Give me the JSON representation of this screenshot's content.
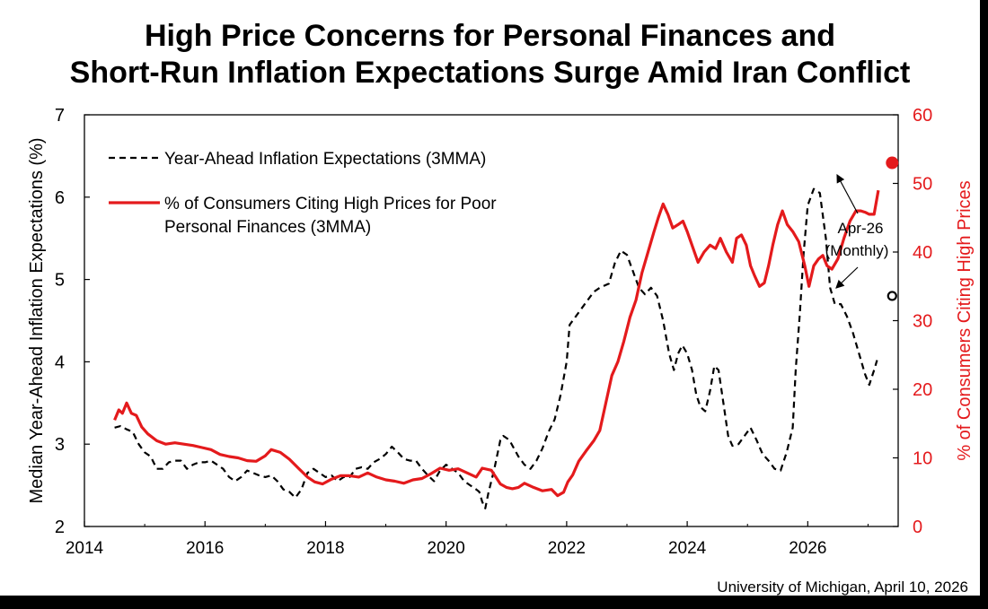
{
  "title_line1": "High Price Concerns for Personal Finances and",
  "title_line2": "Short-Run Inflation Expectations Surge Amid Iran Conflict",
  "source": "University of Michigan, April 10, 2026",
  "annotation": {
    "line1": "Apr-26",
    "line2": "(Monthly)"
  },
  "chart_data": {
    "type": "line",
    "xlim": [
      2014,
      2027.5
    ],
    "x_ticks": [
      "2014",
      "2016",
      "2018",
      "2020",
      "2022",
      "2024",
      "2026"
    ],
    "ylabel_left": "Median Year-Ahead Inflation Expectations (%)",
    "ylim_left": [
      2,
      7
    ],
    "y_ticks_left": [
      "2",
      "3",
      "4",
      "5",
      "6",
      "7"
    ],
    "ylabel_right": "% of Consumers Citing High Prices",
    "ylim_right": [
      0,
      60
    ],
    "y_ticks_right": [
      "0",
      "10",
      "20",
      "30",
      "40",
      "50",
      "60"
    ],
    "grid": false,
    "legend_position": "top-left",
    "series": [
      {
        "name": "Year-Ahead Inflation Expectations (3MMA)",
        "axis": "left",
        "style": "dashed",
        "color": "#000000",
        "points": [
          [
            2014.5,
            3.2
          ],
          [
            2014.6,
            3.22
          ],
          [
            2014.7,
            3.18
          ],
          [
            2014.8,
            3.15
          ],
          [
            2014.9,
            3.0
          ],
          [
            2015.0,
            2.9
          ],
          [
            2015.1,
            2.85
          ],
          [
            2015.2,
            2.7
          ],
          [
            2015.3,
            2.7
          ],
          [
            2015.4,
            2.78
          ],
          [
            2015.5,
            2.8
          ],
          [
            2015.6,
            2.8
          ],
          [
            2015.7,
            2.7
          ],
          [
            2015.8,
            2.75
          ],
          [
            2015.9,
            2.78
          ],
          [
            2016.0,
            2.78
          ],
          [
            2016.1,
            2.8
          ],
          [
            2016.2,
            2.75
          ],
          [
            2016.3,
            2.7
          ],
          [
            2016.4,
            2.6
          ],
          [
            2016.5,
            2.55
          ],
          [
            2016.6,
            2.6
          ],
          [
            2016.7,
            2.68
          ],
          [
            2016.8,
            2.65
          ],
          [
            2016.9,
            2.62
          ],
          [
            2017.0,
            2.6
          ],
          [
            2017.1,
            2.62
          ],
          [
            2017.2,
            2.55
          ],
          [
            2017.3,
            2.45
          ],
          [
            2017.4,
            2.42
          ],
          [
            2017.5,
            2.35
          ],
          [
            2017.6,
            2.45
          ],
          [
            2017.7,
            2.65
          ],
          [
            2017.8,
            2.7
          ],
          [
            2017.9,
            2.65
          ],
          [
            2018.0,
            2.6
          ],
          [
            2018.1,
            2.62
          ],
          [
            2018.2,
            2.55
          ],
          [
            2018.3,
            2.6
          ],
          [
            2018.4,
            2.6
          ],
          [
            2018.5,
            2.7
          ],
          [
            2018.6,
            2.72
          ],
          [
            2018.7,
            2.7
          ],
          [
            2018.8,
            2.78
          ],
          [
            2018.9,
            2.82
          ],
          [
            2019.0,
            2.88
          ],
          [
            2019.1,
            2.97
          ],
          [
            2019.2,
            2.9
          ],
          [
            2019.3,
            2.82
          ],
          [
            2019.4,
            2.8
          ],
          [
            2019.5,
            2.8
          ],
          [
            2019.6,
            2.7
          ],
          [
            2019.7,
            2.62
          ],
          [
            2019.8,
            2.55
          ],
          [
            2019.9,
            2.68
          ],
          [
            2020.0,
            2.75
          ],
          [
            2020.1,
            2.7
          ],
          [
            2020.2,
            2.65
          ],
          [
            2020.3,
            2.55
          ],
          [
            2020.4,
            2.5
          ],
          [
            2020.5,
            2.45
          ],
          [
            2020.55,
            2.42
          ],
          [
            2020.6,
            2.3
          ],
          [
            2020.65,
            2.22
          ],
          [
            2020.7,
            2.4
          ],
          [
            2020.8,
            2.7
          ],
          [
            2020.9,
            3.05
          ],
          [
            2020.95,
            3.1
          ],
          [
            2021.05,
            3.05
          ],
          [
            2021.2,
            2.85
          ],
          [
            2021.3,
            2.75
          ],
          [
            2021.4,
            2.7
          ],
          [
            2021.5,
            2.8
          ],
          [
            2021.6,
            2.95
          ],
          [
            2021.7,
            3.15
          ],
          [
            2021.8,
            3.3
          ],
          [
            2021.9,
            3.6
          ],
          [
            2022.0,
            4.0
          ],
          [
            2022.05,
            4.45
          ],
          [
            2022.15,
            4.55
          ],
          [
            2022.25,
            4.65
          ],
          [
            2022.35,
            4.75
          ],
          [
            2022.45,
            4.85
          ],
          [
            2022.55,
            4.9
          ],
          [
            2022.7,
            4.95
          ],
          [
            2022.8,
            5.2
          ],
          [
            2022.9,
            5.35
          ],
          [
            2023.0,
            5.3
          ],
          [
            2023.1,
            5.1
          ],
          [
            2023.2,
            4.9
          ],
          [
            2023.3,
            4.82
          ],
          [
            2023.4,
            4.9
          ],
          [
            2023.5,
            4.8
          ],
          [
            2023.6,
            4.5
          ],
          [
            2023.7,
            4.1
          ],
          [
            2023.78,
            3.9
          ],
          [
            2023.85,
            4.1
          ],
          [
            2023.92,
            4.2
          ],
          [
            2024.0,
            4.1
          ],
          [
            2024.08,
            3.9
          ],
          [
            2024.15,
            3.6
          ],
          [
            2024.22,
            3.45
          ],
          [
            2024.3,
            3.4
          ],
          [
            2024.38,
            3.65
          ],
          [
            2024.45,
            3.95
          ],
          [
            2024.52,
            3.9
          ],
          [
            2024.6,
            3.5
          ],
          [
            2024.68,
            3.1
          ],
          [
            2024.75,
            2.98
          ],
          [
            2024.85,
            3.0
          ],
          [
            2024.95,
            3.1
          ],
          [
            2025.05,
            3.2
          ],
          [
            2025.15,
            3.05
          ],
          [
            2025.25,
            2.88
          ],
          [
            2025.35,
            2.8
          ],
          [
            2025.45,
            2.7
          ],
          [
            2025.55,
            2.68
          ],
          [
            2025.65,
            2.9
          ],
          [
            2025.75,
            3.2
          ],
          [
            2025.8,
            3.9
          ],
          [
            2025.87,
            4.6
          ],
          [
            2025.93,
            5.3
          ],
          [
            2026.0,
            5.9
          ],
          [
            2026.1,
            6.1
          ],
          [
            2026.2,
            6.05
          ],
          [
            2026.3,
            5.5
          ],
          [
            2026.37,
            4.9
          ],
          [
            2026.45,
            4.7
          ],
          [
            2026.55,
            4.7
          ],
          [
            2026.65,
            4.55
          ],
          [
            2026.75,
            4.35
          ],
          [
            2026.85,
            4.1
          ],
          [
            2026.95,
            3.85
          ],
          [
            2027.02,
            3.72
          ],
          [
            2027.1,
            3.9
          ],
          [
            2027.15,
            4.02
          ]
        ]
      },
      {
        "name": "% of Consumers Citing High Prices for Poor Personal Finances (3MMA)",
        "axis": "right",
        "style": "solid",
        "color": "#e41a1c",
        "points": [
          [
            2014.5,
            15.5
          ],
          [
            2014.57,
            17.0
          ],
          [
            2014.63,
            16.5
          ],
          [
            2014.7,
            18.0
          ],
          [
            2014.78,
            16.5
          ],
          [
            2014.86,
            16.2
          ],
          [
            2014.95,
            14.5
          ],
          [
            2015.05,
            13.5
          ],
          [
            2015.2,
            12.5
          ],
          [
            2015.35,
            12.0
          ],
          [
            2015.5,
            12.2
          ],
          [
            2015.65,
            12.0
          ],
          [
            2015.8,
            11.8
          ],
          [
            2015.95,
            11.5
          ],
          [
            2016.1,
            11.2
          ],
          [
            2016.25,
            10.5
          ],
          [
            2016.4,
            10.2
          ],
          [
            2016.55,
            10.0
          ],
          [
            2016.7,
            9.6
          ],
          [
            2016.85,
            9.5
          ],
          [
            2017.0,
            10.3
          ],
          [
            2017.1,
            11.2
          ],
          [
            2017.25,
            10.8
          ],
          [
            2017.4,
            9.8
          ],
          [
            2017.55,
            8.5
          ],
          [
            2017.7,
            7.2
          ],
          [
            2017.82,
            6.5
          ],
          [
            2017.95,
            6.2
          ],
          [
            2018.1,
            6.9
          ],
          [
            2018.25,
            7.4
          ],
          [
            2018.4,
            7.4
          ],
          [
            2018.55,
            7.2
          ],
          [
            2018.7,
            7.8
          ],
          [
            2018.85,
            7.2
          ],
          [
            2019.0,
            6.8
          ],
          [
            2019.15,
            6.6
          ],
          [
            2019.3,
            6.3
          ],
          [
            2019.45,
            6.8
          ],
          [
            2019.6,
            7.0
          ],
          [
            2019.75,
            7.7
          ],
          [
            2019.9,
            8.5
          ],
          [
            2020.05,
            8.2
          ],
          [
            2020.2,
            8.4
          ],
          [
            2020.35,
            7.8
          ],
          [
            2020.5,
            7.2
          ],
          [
            2020.6,
            8.5
          ],
          [
            2020.75,
            8.2
          ],
          [
            2020.9,
            6.2
          ],
          [
            2021.0,
            5.7
          ],
          [
            2021.1,
            5.5
          ],
          [
            2021.2,
            5.7
          ],
          [
            2021.3,
            6.3
          ],
          [
            2021.45,
            5.7
          ],
          [
            2021.6,
            5.2
          ],
          [
            2021.75,
            5.4
          ],
          [
            2021.85,
            4.5
          ],
          [
            2021.95,
            5.0
          ],
          [
            2022.02,
            6.5
          ],
          [
            2022.1,
            7.5
          ],
          [
            2022.2,
            9.5
          ],
          [
            2022.32,
            11.0
          ],
          [
            2022.45,
            12.5
          ],
          [
            2022.55,
            14.0
          ],
          [
            2022.65,
            18.0
          ],
          [
            2022.75,
            22.0
          ],
          [
            2022.85,
            24.0
          ],
          [
            2022.95,
            27.0
          ],
          [
            2023.05,
            30.5
          ],
          [
            2023.15,
            33.0
          ],
          [
            2023.25,
            37.0
          ],
          [
            2023.35,
            40.0
          ],
          [
            2023.45,
            43.0
          ],
          [
            2023.52,
            45.0
          ],
          [
            2023.6,
            47.0
          ],
          [
            2023.68,
            45.5
          ],
          [
            2023.76,
            43.5
          ],
          [
            2023.85,
            44.0
          ],
          [
            2023.93,
            44.5
          ],
          [
            2024.0,
            43.0
          ],
          [
            2024.1,
            40.5
          ],
          [
            2024.18,
            38.5
          ],
          [
            2024.28,
            40.0
          ],
          [
            2024.38,
            41.0
          ],
          [
            2024.47,
            40.5
          ],
          [
            2024.55,
            42.0
          ],
          [
            2024.65,
            40.0
          ],
          [
            2024.75,
            38.5
          ],
          [
            2024.82,
            42.0
          ],
          [
            2024.9,
            42.5
          ],
          [
            2024.98,
            41.0
          ],
          [
            2025.05,
            38.0
          ],
          [
            2025.12,
            36.5
          ],
          [
            2025.2,
            35.0
          ],
          [
            2025.28,
            35.5
          ],
          [
            2025.35,
            38.0
          ],
          [
            2025.42,
            41.0
          ],
          [
            2025.5,
            44.0
          ],
          [
            2025.58,
            46.0
          ],
          [
            2025.66,
            44.0
          ],
          [
            2025.75,
            43.0
          ],
          [
            2025.85,
            41.5
          ],
          [
            2025.95,
            38.0
          ],
          [
            2026.02,
            35.0
          ],
          [
            2026.1,
            38.0
          ],
          [
            2026.18,
            39.0
          ],
          [
            2026.25,
            39.5
          ],
          [
            2026.32,
            38.0
          ],
          [
            2026.4,
            37.5
          ],
          [
            2026.5,
            39.0
          ],
          [
            2026.6,
            42.0
          ],
          [
            2026.7,
            44.5
          ],
          [
            2026.8,
            46.0
          ],
          [
            2026.88,
            46.0
          ],
          [
            2026.95,
            45.8
          ],
          [
            2027.02,
            45.5
          ],
          [
            2027.1,
            45.5
          ],
          [
            2027.17,
            49.0
          ]
        ]
      }
    ],
    "monthly_markers": [
      {
        "series": "Year-Ahead Inflation Expectations",
        "axis": "left",
        "x": 2027.4,
        "y": 4.8,
        "style": "hollow-circle"
      },
      {
        "series": "% of Consumers Citing High Prices",
        "axis": "right",
        "x": 2027.4,
        "y": 53,
        "style": "filled-circle"
      }
    ]
  }
}
